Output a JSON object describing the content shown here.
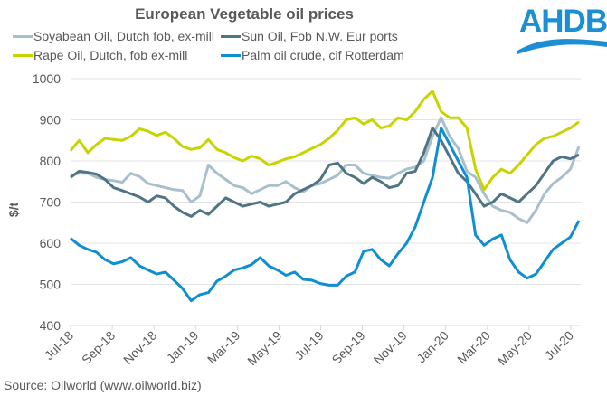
{
  "chart_data": {
    "type": "line",
    "title": "European Vegetable oil prices",
    "xlabel": "",
    "ylabel": "$/t",
    "ylim": [
      400,
      1000
    ],
    "yticks": [
      400,
      500,
      600,
      700,
      800,
      900,
      1000
    ],
    "grid": true,
    "legend_position": "top",
    "x_start": "Jul-18",
    "x_end": "Aug-20",
    "x_step_months": 0.5,
    "xtick_labels": [
      "Jul-18",
      "Sep-18",
      "Nov-18",
      "Jan-19",
      "Mar-19",
      "May-19",
      "Jul-19",
      "Sep-19",
      "Nov-19",
      "Jan-20",
      "Mar-20",
      "May-20",
      "Jul-20"
    ],
    "series": [
      {
        "name": "Soyabean Oil, Dutch fob, ex-mill",
        "color": "#a8c0cc",
        "values": [
          765,
          770,
          770,
          760,
          755,
          752,
          748,
          770,
          762,
          745,
          740,
          735,
          730,
          728,
          700,
          715,
          790,
          770,
          755,
          740,
          735,
          720,
          730,
          740,
          740,
          750,
          735,
          725,
          740,
          745,
          755,
          765,
          790,
          790,
          770,
          765,
          760,
          758,
          770,
          780,
          785,
          800,
          860,
          905,
          860,
          830,
          775,
          760,
          720,
          690,
          680,
          675,
          660,
          650,
          680,
          720,
          745,
          760,
          780,
          835
        ]
      },
      {
        "name": "Sun Oil, Fob N.W. Eur ports",
        "color": "#4f7483",
        "values": [
          760,
          775,
          772,
          768,
          755,
          735,
          728,
          720,
          712,
          700,
          715,
          710,
          690,
          675,
          665,
          680,
          670,
          690,
          710,
          700,
          690,
          695,
          700,
          690,
          695,
          700,
          720,
          730,
          740,
          755,
          790,
          795,
          770,
          760,
          745,
          760,
          750,
          735,
          740,
          770,
          775,
          820,
          880,
          850,
          810,
          770,
          750,
          720,
          690,
          700,
          720,
          710,
          700,
          720,
          740,
          770,
          800,
          810,
          805,
          815
        ]
      },
      {
        "name": "Rape Oil, Dutch, fob ex-mill",
        "color": "#c8d400",
        "values": [
          825,
          850,
          820,
          840,
          855,
          852,
          850,
          860,
          878,
          872,
          862,
          870,
          855,
          835,
          828,
          832,
          852,
          828,
          820,
          808,
          800,
          812,
          805,
          790,
          797,
          805,
          810,
          820,
          830,
          840,
          855,
          875,
          900,
          905,
          890,
          900,
          880,
          885,
          905,
          900,
          920,
          950,
          970,
          920,
          905,
          905,
          880,
          780,
          730,
          760,
          780,
          770,
          790,
          815,
          840,
          855,
          860,
          870,
          880,
          895
        ]
      },
      {
        "name": "Palm oil crude, cif Rotterdam",
        "color": "#0f8fd2",
        "values": [
          612,
          595,
          585,
          578,
          560,
          550,
          555,
          565,
          545,
          535,
          525,
          530,
          510,
          490,
          460,
          475,
          480,
          508,
          520,
          535,
          540,
          548,
          565,
          545,
          535,
          522,
          530,
          512,
          510,
          502,
          498,
          498,
          520,
          530,
          580,
          585,
          560,
          545,
          575,
          600,
          640,
          700,
          760,
          880,
          840,
          800,
          760,
          620,
          595,
          610,
          620,
          560,
          530,
          515,
          525,
          555,
          585,
          600,
          615,
          655
        ]
      }
    ]
  },
  "legend": {
    "items": [
      {
        "label": "Soyabean Oil, Dutch fob, ex-mill",
        "color": "#a8c0cc"
      },
      {
        "label": "Sun Oil, Fob N.W. Eur ports",
        "color": "#4f7483"
      },
      {
        "label": "Rape Oil, Dutch, fob ex-mill",
        "color": "#c8d400"
      },
      {
        "label": "Palm oil crude, cif Rotterdam",
        "color": "#0f8fd2"
      }
    ]
  },
  "logo": {
    "text": "AHDB",
    "color": "#1c8fd4"
  },
  "source": "Source: Oilworld (www.oilworld.biz)"
}
